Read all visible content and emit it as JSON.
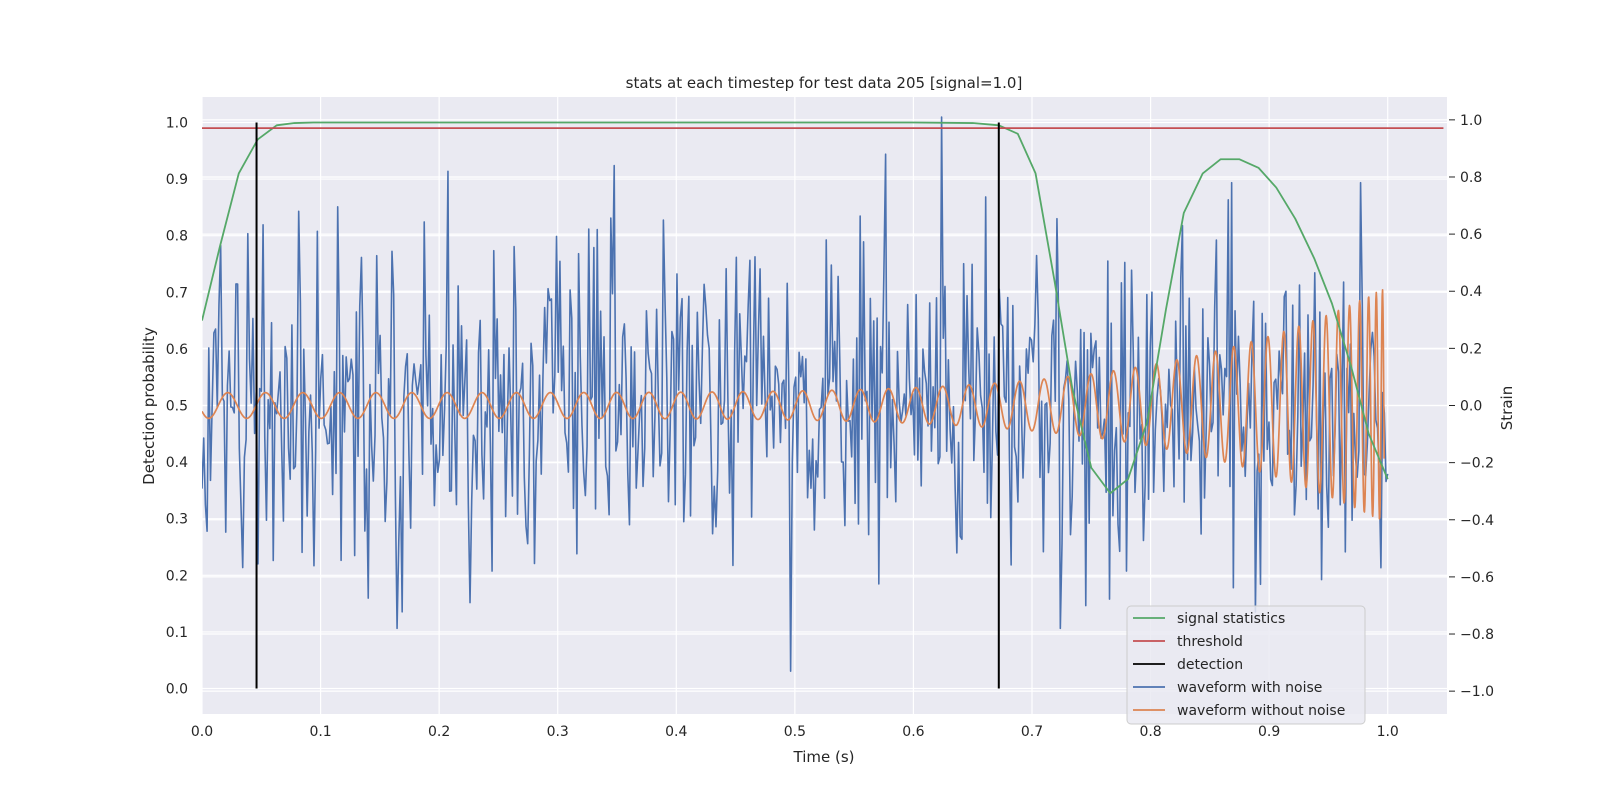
{
  "chart_data": {
    "type": "line",
    "title": "stats at each timestep for test data 205 [signal=1.0]",
    "xlabel": "Time (s)",
    "ylabel": "Detection probability",
    "y2label": "Strain",
    "xlim": [
      0.0,
      1.05
    ],
    "ylim": [
      -0.045,
      1.045
    ],
    "y2lim": [
      -1.08,
      1.08
    ],
    "xticks": [
      "0.0",
      "0.1",
      "0.2",
      "0.3",
      "0.4",
      "0.5",
      "0.6",
      "0.7",
      "0.8",
      "0.9",
      "1.0"
    ],
    "yticks": [
      "0.0",
      "0.1",
      "0.2",
      "0.3",
      "0.4",
      "0.5",
      "0.6",
      "0.7",
      "0.8",
      "0.9",
      "1.0"
    ],
    "y2ticks": [
      "−1.0",
      "−0.8",
      "−0.6",
      "−0.4",
      "−0.2",
      "0.0",
      "0.2",
      "0.4",
      "0.6",
      "0.8",
      "1.0"
    ],
    "grid": true,
    "legend_position": "lower-right",
    "series": [
      {
        "name": "signal statistics",
        "color": "#55a868",
        "axis": "left",
        "x": [
          0.0,
          0.015,
          0.031,
          0.047,
          0.063,
          0.078,
          0.094,
          0.11,
          0.2,
          0.3,
          0.4,
          0.5,
          0.6,
          0.65,
          0.672,
          0.688,
          0.703,
          0.719,
          0.734,
          0.75,
          0.766,
          0.781,
          0.797,
          0.813,
          0.828,
          0.844,
          0.859,
          0.875,
          0.891,
          0.906,
          0.922,
          0.938,
          0.953,
          0.969,
          0.984,
          1.0
        ],
        "values": [
          0.65,
          0.78,
          0.91,
          0.97,
          0.995,
          0.999,
          1.0,
          1.0,
          1.0,
          1.0,
          1.0,
          1.0,
          1.0,
          0.999,
          0.995,
          0.98,
          0.91,
          0.72,
          0.53,
          0.39,
          0.345,
          0.37,
          0.47,
          0.67,
          0.84,
          0.91,
          0.935,
          0.935,
          0.92,
          0.885,
          0.83,
          0.76,
          0.68,
          0.57,
          0.45,
          0.37
        ]
      },
      {
        "name": "threshold",
        "color": "#c44e52",
        "axis": "left",
        "x": [
          0.0,
          1.047
        ],
        "values": [
          0.99,
          0.99
        ]
      },
      {
        "name": "detection",
        "color": "#000000",
        "axis": "left",
        "x": [
          0.046,
          0.672
        ],
        "values": [
          1.0,
          1.0
        ]
      },
      {
        "name": "waveform with noise",
        "color": "#4c72b0",
        "axis": "right",
        "n_points": 700,
        "std": 0.28,
        "peaks_x": [
          0.016,
          0.081,
          0.097,
          0.2076,
          0.3479,
          0.4966,
          0.5764,
          0.6234,
          0.6611,
          0.866
        ],
        "peaks_values": [
          0.56,
          0.68,
          0.61,
          0.82,
          0.84,
          -0.93,
          0.88,
          1.01,
          0.73,
          0.72
        ]
      },
      {
        "name": "waveform without noise",
        "color": "#dd8452",
        "axis": "right",
        "x_start": 0.0,
        "x_end": 0.997,
        "amplitude_start": 0.045,
        "amplitude_end": 0.41,
        "cycles": 48
      }
    ]
  }
}
